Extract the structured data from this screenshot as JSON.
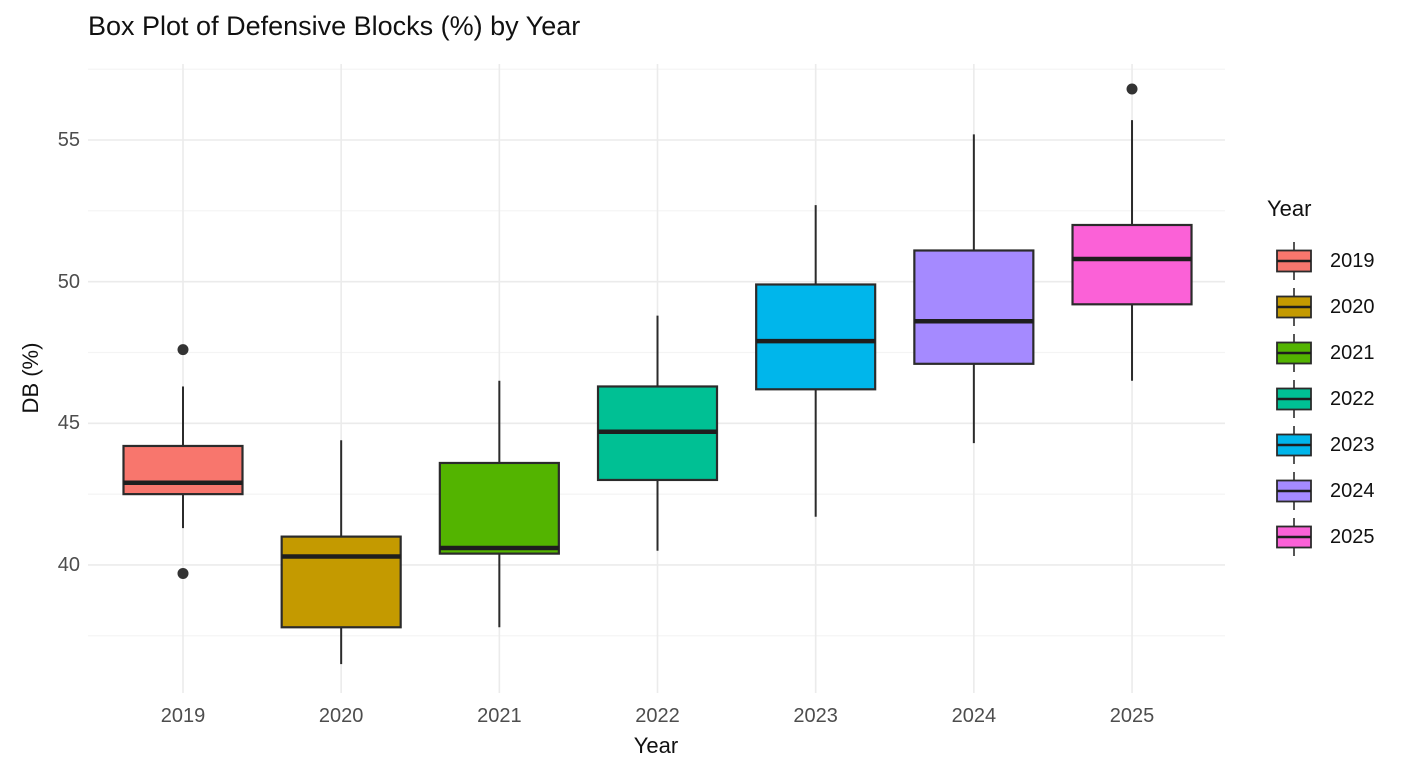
{
  "title": "Box Plot of Defensive Blocks (%) by Year",
  "x_axis": {
    "label": "Year",
    "tick_labels": [
      "2019",
      "2020",
      "2021",
      "2022",
      "2023",
      "2024",
      "2025"
    ]
  },
  "y_axis": {
    "label": "DB (%)",
    "tick_labels": [
      "40",
      "45",
      "50",
      "55"
    ]
  },
  "legend": {
    "title": "Year"
  },
  "chart_data": {
    "type": "boxplot",
    "title": "Box Plot of Defensive Blocks (%) by Year",
    "xlabel": "Year",
    "ylabel": "DB (%)",
    "categories": [
      "2019",
      "2020",
      "2021",
      "2022",
      "2023",
      "2024",
      "2025"
    ],
    "y_major_ticks": [
      40,
      45,
      50,
      55
    ],
    "y_minor_ticks": [
      37.5,
      42.5,
      47.5,
      52.5,
      57.5
    ],
    "ylim": [
      35.4,
      57.7
    ],
    "grid": "horizontal major+minor light gray, vertical major at each category",
    "legend_position": "right",
    "series": [
      {
        "name": "2019",
        "color": "#F8766D",
        "whisker_low": 41.3,
        "q1": 42.5,
        "median": 42.9,
        "q3": 44.2,
        "whisker_high": 46.3,
        "outliers": [
          47.6,
          39.7
        ]
      },
      {
        "name": "2020",
        "color": "#C49A00",
        "whisker_low": 36.5,
        "q1": 37.8,
        "median": 40.3,
        "q3": 41.0,
        "whisker_high": 44.4,
        "outliers": []
      },
      {
        "name": "2021",
        "color": "#53B400",
        "whisker_low": 37.8,
        "q1": 40.4,
        "median": 40.6,
        "q3": 43.6,
        "whisker_high": 46.5,
        "outliers": []
      },
      {
        "name": "2022",
        "color": "#00C094",
        "whisker_low": 40.5,
        "q1": 43.0,
        "median": 44.7,
        "q3": 46.3,
        "whisker_high": 48.8,
        "outliers": []
      },
      {
        "name": "2023",
        "color": "#00B6EB",
        "whisker_low": 41.7,
        "q1": 46.2,
        "median": 47.9,
        "q3": 49.9,
        "whisker_high": 52.7,
        "outliers": []
      },
      {
        "name": "2024",
        "color": "#A58AFF",
        "whisker_low": 44.3,
        "q1": 47.1,
        "median": 48.6,
        "q3": 51.1,
        "whisker_high": 55.2,
        "outliers": []
      },
      {
        "name": "2025",
        "color": "#FB61D7",
        "whisker_low": 46.5,
        "q1": 49.2,
        "median": 50.8,
        "q3": 52.0,
        "whisker_high": 55.7,
        "outliers": [
          56.8
        ]
      }
    ]
  },
  "style_colors": {
    "box_stroke": "#2B2B2B",
    "median_line": "#1E1E1E",
    "outlier": "#333333",
    "grid_major": "#EBEBEB",
    "grid_minor": "#F4F4F4",
    "tick_text": "#4D4D4D",
    "title_text": "#111111"
  }
}
